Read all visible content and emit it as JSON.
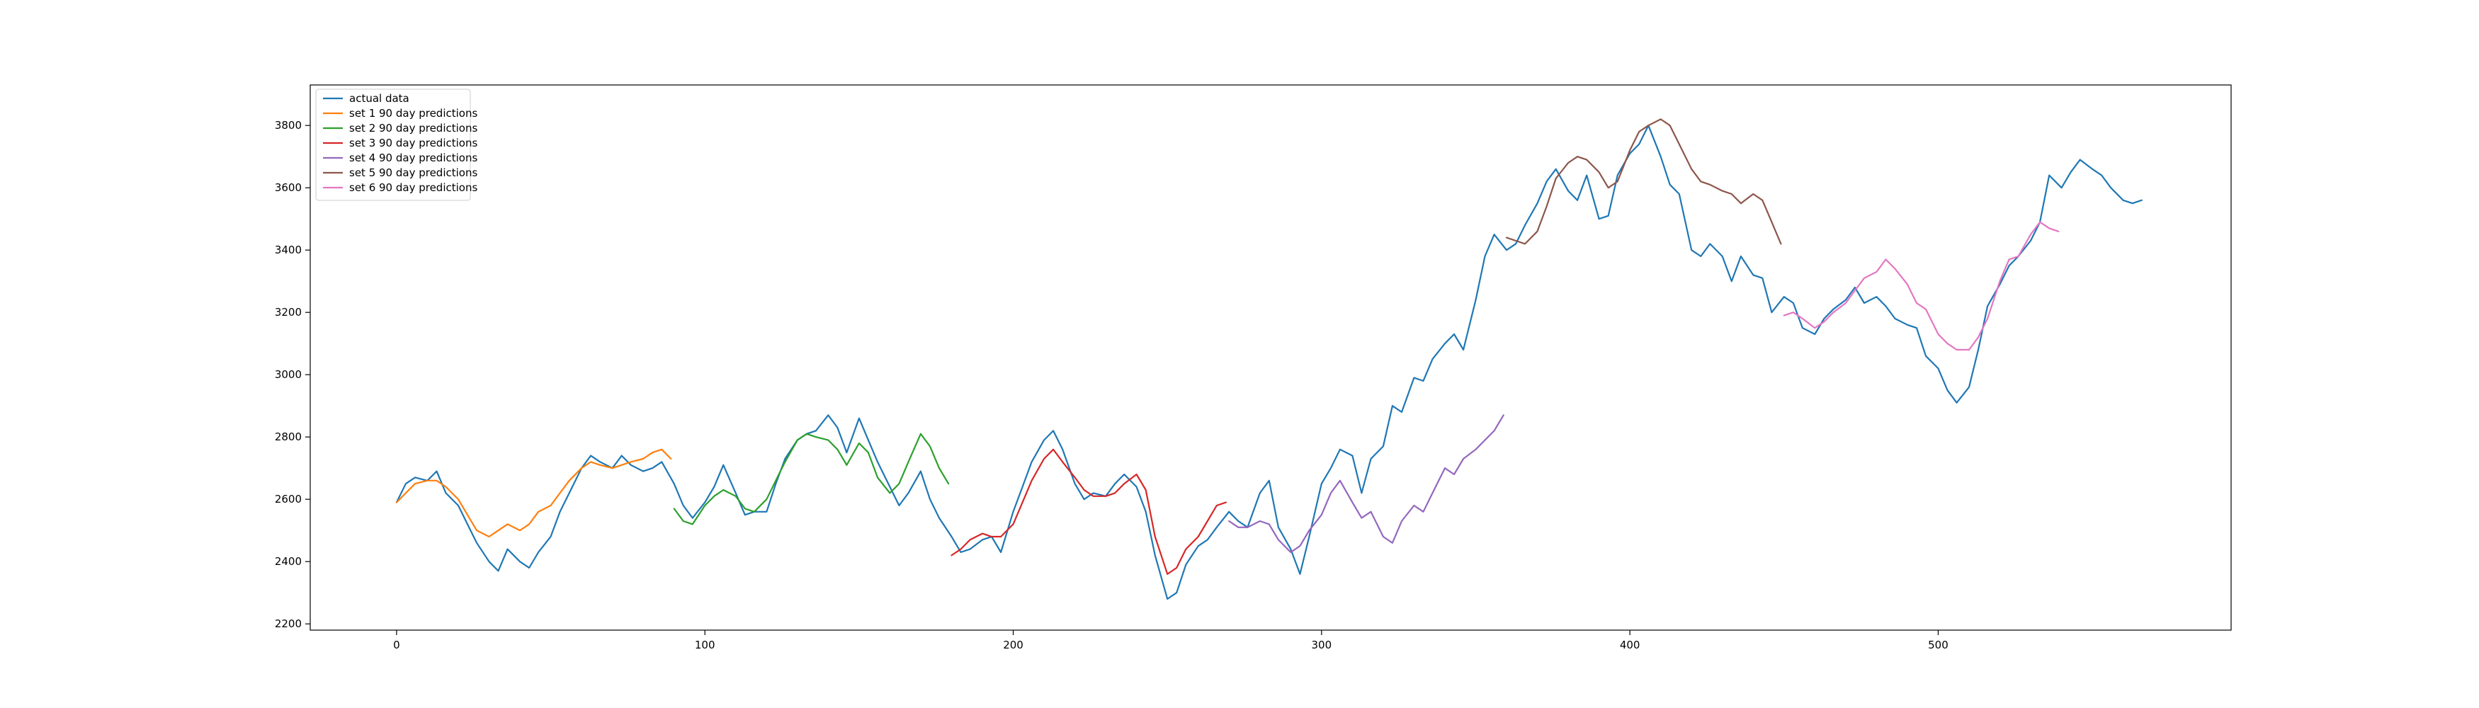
{
  "chart_data": {
    "type": "line",
    "title": "",
    "xlabel": "",
    "ylabel": "",
    "xlim": [
      -28,
      595
    ],
    "ylim": [
      2180,
      3930
    ],
    "xticks": [
      0,
      100,
      200,
      300,
      400,
      500
    ],
    "yticks": [
      2200,
      2400,
      2600,
      2800,
      3000,
      3200,
      3400,
      3600,
      3800
    ],
    "grid": false,
    "legend_position": "top-left",
    "series": [
      {
        "name": "actual data",
        "color": "#1f77b4",
        "x": [
          0,
          3,
          6,
          10,
          13,
          16,
          20,
          23,
          26,
          30,
          33,
          36,
          40,
          43,
          46,
          50,
          53,
          56,
          60,
          63,
          66,
          70,
          73,
          76,
          80,
          83,
          86,
          90,
          93,
          96,
          100,
          103,
          106,
          110,
          113,
          116,
          120,
          123,
          126,
          130,
          133,
          136,
          140,
          143,
          146,
          150,
          153,
          156,
          160,
          163,
          166,
          170,
          173,
          176,
          180,
          183,
          186,
          190,
          193,
          196,
          200,
          203,
          206,
          210,
          213,
          216,
          220,
          223,
          226,
          230,
          233,
          236,
          240,
          243,
          246,
          250,
          253,
          256,
          260,
          263,
          266,
          270,
          273,
          276,
          280,
          283,
          286,
          290,
          293,
          296,
          300,
          303,
          306,
          310,
          313,
          316,
          320,
          323,
          326,
          330,
          333,
          336,
          340,
          343,
          346,
          350,
          353,
          356,
          360,
          363,
          366,
          370,
          373,
          376,
          380,
          383,
          386,
          390,
          393,
          396,
          400,
          403,
          406,
          410,
          413,
          416,
          420,
          423,
          426,
          430,
          433,
          436,
          440,
          443,
          446,
          450,
          453,
          456,
          460,
          463,
          466,
          470,
          473,
          476,
          480,
          483,
          486,
          490,
          493,
          496,
          500,
          503,
          506,
          510,
          513,
          516,
          520,
          523,
          526,
          530,
          533,
          536,
          540,
          543,
          546,
          550,
          553,
          556,
          560,
          563,
          566
        ],
        "y": [
          2590,
          2650,
          2670,
          2660,
          2690,
          2620,
          2580,
          2520,
          2460,
          2400,
          2370,
          2440,
          2400,
          2380,
          2430,
          2480,
          2560,
          2620,
          2700,
          2740,
          2720,
          2700,
          2740,
          2710,
          2690,
          2700,
          2720,
          2650,
          2580,
          2540,
          2590,
          2640,
          2710,
          2620,
          2550,
          2560,
          2560,
          2650,
          2730,
          2790,
          2810,
          2820,
          2870,
          2830,
          2750,
          2860,
          2790,
          2720,
          2640,
          2580,
          2620,
          2690,
          2600,
          2540,
          2480,
          2430,
          2440,
          2470,
          2480,
          2430,
          2560,
          2640,
          2720,
          2790,
          2820,
          2760,
          2650,
          2600,
          2620,
          2610,
          2650,
          2680,
          2640,
          2560,
          2420,
          2280,
          2300,
          2390,
          2450,
          2470,
          2510,
          2560,
          2530,
          2510,
          2620,
          2660,
          2510,
          2440,
          2360,
          2480,
          2650,
          2700,
          2760,
          2740,
          2620,
          2730,
          2770,
          2900,
          2880,
          2990,
          2980,
          3050,
          3100,
          3130,
          3080,
          3240,
          3380,
          3450,
          3400,
          3420,
          3480,
          3550,
          3620,
          3660,
          3590,
          3560,
          3640,
          3500,
          3510,
          3640,
          3710,
          3740,
          3800,
          3700,
          3610,
          3580,
          3400,
          3380,
          3420,
          3380,
          3300,
          3380,
          3320,
          3310,
          3200,
          3250,
          3230,
          3150,
          3130,
          3180,
          3210,
          3240,
          3280,
          3230,
          3250,
          3220,
          3180,
          3160,
          3150,
          3060,
          3020,
          2950,
          2910,
          2960,
          3080,
          3220,
          3290,
          3350,
          3380,
          3430,
          3490,
          3640,
          3600,
          3650,
          3690,
          3660,
          3640,
          3600,
          3560,
          3550,
          3560
        ]
      },
      {
        "name": "set 1 90 day predictions",
        "color": "#ff7f0e",
        "x": [
          0,
          3,
          6,
          10,
          13,
          16,
          20,
          23,
          26,
          30,
          33,
          36,
          40,
          43,
          46,
          50,
          53,
          56,
          60,
          63,
          66,
          70,
          73,
          76,
          80,
          83,
          86,
          89
        ],
        "y": [
          2590,
          2620,
          2650,
          2660,
          2660,
          2640,
          2600,
          2550,
          2500,
          2480,
          2500,
          2520,
          2500,
          2520,
          2560,
          2580,
          2620,
          2660,
          2700,
          2720,
          2710,
          2700,
          2710,
          2720,
          2730,
          2750,
          2760,
          2730
        ]
      },
      {
        "name": "set 2 90 day predictions",
        "color": "#2ca02c",
        "x": [
          90,
          93,
          96,
          100,
          103,
          106,
          110,
          113,
          116,
          120,
          123,
          126,
          130,
          133,
          136,
          140,
          143,
          146,
          150,
          153,
          156,
          160,
          163,
          166,
          170,
          173,
          176,
          179
        ],
        "y": [
          2570,
          2530,
          2520,
          2580,
          2610,
          2630,
          2610,
          2570,
          2560,
          2600,
          2660,
          2720,
          2790,
          2810,
          2800,
          2790,
          2760,
          2710,
          2780,
          2750,
          2670,
          2620,
          2650,
          2720,
          2810,
          2770,
          2700,
          2650
        ]
      },
      {
        "name": "set 3 90 day predictions",
        "color": "#d62728",
        "x": [
          180,
          183,
          186,
          190,
          193,
          196,
          200,
          203,
          206,
          210,
          213,
          216,
          220,
          223,
          226,
          230,
          233,
          236,
          240,
          243,
          246,
          250,
          253,
          256,
          260,
          263,
          266,
          269
        ],
        "y": [
          2420,
          2440,
          2470,
          2490,
          2480,
          2480,
          2520,
          2590,
          2660,
          2730,
          2760,
          2720,
          2670,
          2630,
          2610,
          2610,
          2620,
          2650,
          2680,
          2630,
          2480,
          2360,
          2380,
          2440,
          2480,
          2530,
          2580,
          2590
        ]
      },
      {
        "name": "set 4 90 day predictions",
        "color": "#9467bd",
        "x": [
          270,
          273,
          276,
          280,
          283,
          286,
          290,
          293,
          296,
          300,
          303,
          306,
          310,
          313,
          316,
          320,
          323,
          326,
          330,
          333,
          336,
          340,
          343,
          346,
          350,
          353,
          356,
          359
        ],
        "y": [
          2530,
          2510,
          2510,
          2530,
          2520,
          2470,
          2430,
          2450,
          2500,
          2550,
          2620,
          2660,
          2590,
          2540,
          2560,
          2480,
          2460,
          2530,
          2580,
          2560,
          2620,
          2700,
          2680,
          2730,
          2760,
          2790,
          2820,
          2870
        ]
      },
      {
        "name": "set 5 90 day predictions",
        "color": "#8c564b",
        "x": [
          360,
          363,
          366,
          370,
          373,
          376,
          380,
          383,
          386,
          390,
          393,
          396,
          400,
          403,
          406,
          410,
          413,
          416,
          420,
          423,
          426,
          430,
          433,
          436,
          440,
          443,
          446,
          449
        ],
        "y": [
          3440,
          3430,
          3420,
          3460,
          3540,
          3630,
          3680,
          3700,
          3690,
          3650,
          3600,
          3620,
          3720,
          3780,
          3800,
          3820,
          3800,
          3740,
          3660,
          3620,
          3610,
          3590,
          3580,
          3550,
          3580,
          3560,
          3490,
          3420
        ]
      },
      {
        "name": "set 6 90 day predictions",
        "color": "#e377c2",
        "x": [
          450,
          453,
          456,
          460,
          463,
          466,
          470,
          473,
          476,
          480,
          483,
          486,
          490,
          493,
          496,
          500,
          503,
          506,
          510,
          513,
          516,
          520,
          523,
          526,
          530,
          533,
          536,
          539
        ],
        "y": [
          3190,
          3200,
          3180,
          3150,
          3170,
          3200,
          3230,
          3270,
          3310,
          3330,
          3370,
          3340,
          3290,
          3230,
          3210,
          3130,
          3100,
          3080,
          3080,
          3120,
          3180,
          3300,
          3370,
          3380,
          3450,
          3490,
          3470,
          3460
        ]
      }
    ]
  }
}
